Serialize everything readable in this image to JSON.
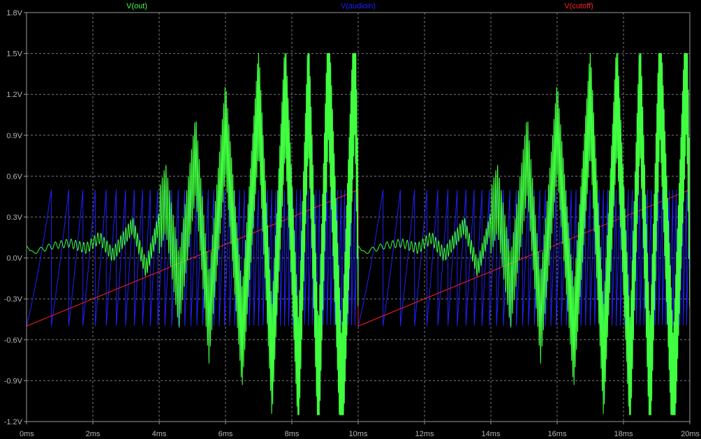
{
  "chart_data": {
    "type": "line",
    "title": "",
    "xlabel": "",
    "ylabel": "",
    "xlim": [
      0,
      20
    ],
    "ylim": [
      -1.2,
      1.8
    ],
    "x_unit": "ms",
    "y_unit": "V",
    "x_ticks": [
      "0ms",
      "2ms",
      "4ms",
      "6ms",
      "8ms",
      "10ms",
      "12ms",
      "14ms",
      "16ms",
      "18ms",
      "20ms"
    ],
    "y_ticks": [
      "1.8V",
      "1.5V",
      "1.2V",
      "0.9V",
      "0.6V",
      "0.3V",
      "0.0V",
      "-0.3V",
      "-0.6V",
      "-0.9V",
      "-1.2V"
    ],
    "grid": true,
    "legend_placement": "top",
    "colors": {
      "background": "#000000",
      "axis": "#9a9a9a",
      "grid": "#7a7a7a",
      "tick_label": "#b4b4b4"
    },
    "series": [
      {
        "name": "V(out)",
        "color": "#40ff40",
        "description_points": {
          "period_ms": 10,
          "x": [
            0,
            0.1,
            0.3,
            0.8,
            1.3,
            1.8,
            2.2,
            2.6,
            3.2,
            3.6,
            4.2,
            4.6,
            5.1,
            5.5,
            6.0,
            6.5,
            7.0,
            7.4,
            7.8,
            8.2,
            8.5,
            8.8,
            9.1,
            9.5,
            9.9,
            10.0
          ],
          "y": [
            0.09,
            0.04,
            0.05,
            0.09,
            0.11,
            0.07,
            0.15,
            0.02,
            0.24,
            -0.08,
            0.44,
            -0.25,
            0.76,
            -0.46,
            0.96,
            -0.6,
            1.17,
            -0.78,
            1.22,
            -0.89,
            1.27,
            -0.99,
            1.38,
            -1.1,
            1.48,
            0.09
          ]
        }
      },
      {
        "name": "V(audioin)",
        "color": "#2020ff",
        "waveform": "sawtooth",
        "min": -0.5,
        "max": 0.5,
        "start_freq_khz": 1,
        "end_freq_khz": 10,
        "period_ms": 10
      },
      {
        "name": "V(cutoff)",
        "color": "#ff2020",
        "waveform": "ramp",
        "x": [
          0,
          0,
          10,
          10,
          20
        ],
        "y": [
          0.5,
          -0.5,
          0.5,
          -0.5,
          0.5
        ]
      }
    ]
  }
}
